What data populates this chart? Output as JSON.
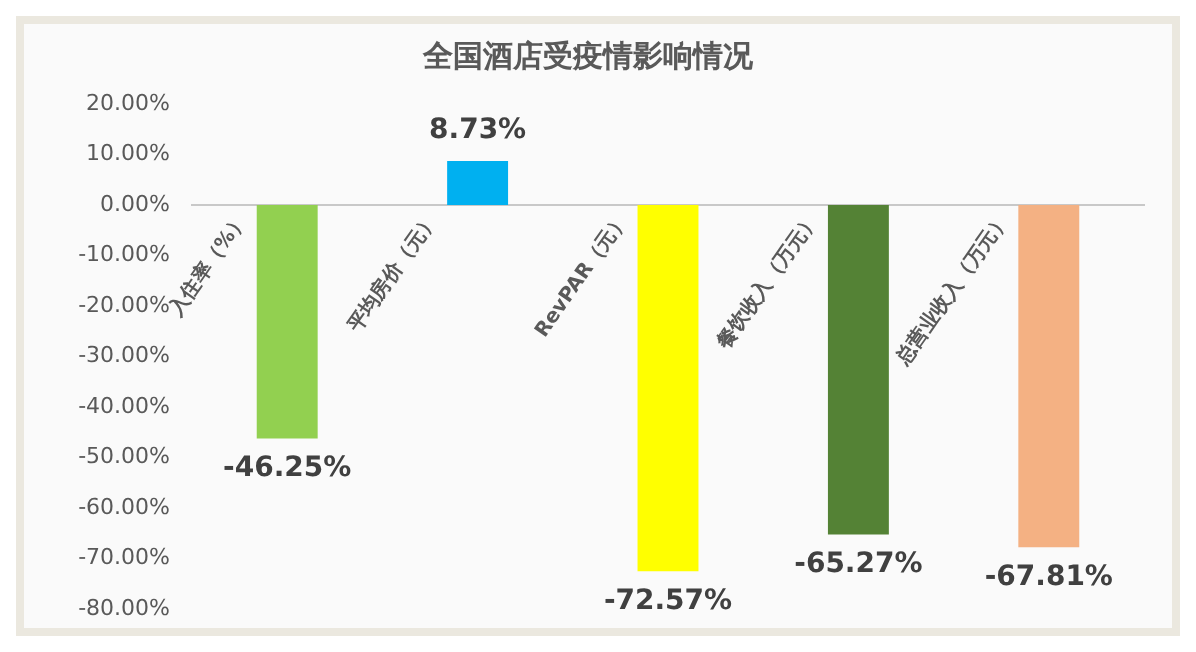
{
  "chart_data": {
    "type": "bar",
    "title": "全国酒店受疫情影响情况",
    "categories": [
      "入住率（%）",
      "平均房价（元）",
      "RevPAR（元）",
      "餐饮收入（万元）",
      "总营业收入（万元）"
    ],
    "values": [
      -46.25,
      8.73,
      -72.57,
      -65.27,
      -67.81
    ],
    "colors": [
      "#92d050",
      "#00b0f0",
      "#ffff00",
      "#548235",
      "#f4b183"
    ],
    "value_labels": [
      "-46.25%",
      "8.73%",
      "-72.57%",
      "-65.27%",
      "-67.81%"
    ],
    "ylim": [
      -80,
      20
    ],
    "yticks": [
      {
        "value": 20,
        "label": "20.00%"
      },
      {
        "value": 10,
        "label": "10.00%"
      },
      {
        "value": 0,
        "label": "0.00%"
      },
      {
        "value": -10,
        "label": "-10.00%"
      },
      {
        "value": -20,
        "label": "-20.00%"
      },
      {
        "value": -30,
        "label": "-30.00%"
      },
      {
        "value": -40,
        "label": "-40.00%"
      },
      {
        "value": -50,
        "label": "-50.00%"
      },
      {
        "value": -60,
        "label": "-60.00%"
      },
      {
        "value": -70,
        "label": "-70.00%"
      },
      {
        "value": -80,
        "label": "-80.00%"
      }
    ],
    "grid": false,
    "legend": false
  }
}
